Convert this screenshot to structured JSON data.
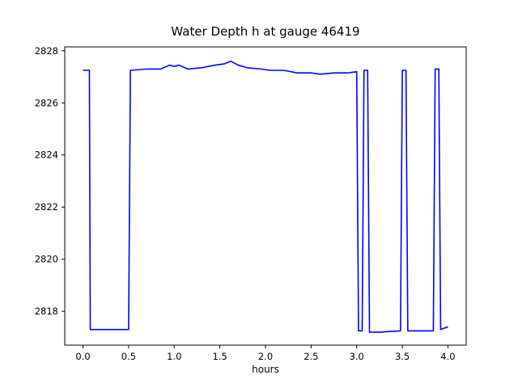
{
  "chart_data": {
    "type": "line",
    "title": "Water Depth h at gauge 46419",
    "xlabel": "hours",
    "ylabel": "",
    "xlim": [
      -0.2,
      4.2
    ],
    "ylim": [
      2816.7,
      2828.15
    ],
    "xticks": [
      0.0,
      0.5,
      1.0,
      1.5,
      2.0,
      2.5,
      3.0,
      3.5,
      4.0
    ],
    "xtick_labels": [
      "0.0",
      "0.5",
      "1.0",
      "1.5",
      "2.0",
      "2.5",
      "3.0",
      "3.5",
      "4.0"
    ],
    "yticks": [
      2818,
      2820,
      2822,
      2824,
      2826,
      2828
    ],
    "ytick_labels": [
      "2818",
      "2820",
      "2822",
      "2824",
      "2826",
      "2828"
    ],
    "grid": false,
    "legend": "none",
    "series": [
      {
        "name": "water-depth",
        "color": "#0000ff",
        "points": [
          [
            0.0,
            2827.25
          ],
          [
            0.07,
            2827.25
          ],
          [
            0.08,
            2817.3
          ],
          [
            0.5,
            2817.3
          ],
          [
            0.52,
            2827.25
          ],
          [
            0.7,
            2827.3
          ],
          [
            0.85,
            2827.3
          ],
          [
            0.95,
            2827.45
          ],
          [
            1.0,
            2827.4
          ],
          [
            1.05,
            2827.45
          ],
          [
            1.15,
            2827.3
          ],
          [
            1.3,
            2827.35
          ],
          [
            1.45,
            2827.45
          ],
          [
            1.55,
            2827.5
          ],
          [
            1.62,
            2827.6
          ],
          [
            1.7,
            2827.45
          ],
          [
            1.8,
            2827.35
          ],
          [
            1.95,
            2827.3
          ],
          [
            2.05,
            2827.25
          ],
          [
            2.2,
            2827.25
          ],
          [
            2.35,
            2827.15
          ],
          [
            2.5,
            2827.15
          ],
          [
            2.6,
            2827.1
          ],
          [
            2.75,
            2827.15
          ],
          [
            2.9,
            2827.15
          ],
          [
            3.0,
            2827.2
          ],
          [
            3.02,
            2817.25
          ],
          [
            3.06,
            2817.25
          ],
          [
            3.08,
            2827.25
          ],
          [
            3.12,
            2827.25
          ],
          [
            3.14,
            2817.2
          ],
          [
            3.25,
            2817.2
          ],
          [
            3.48,
            2817.25
          ],
          [
            3.5,
            2827.25
          ],
          [
            3.54,
            2827.25
          ],
          [
            3.56,
            2817.25
          ],
          [
            3.84,
            2817.25
          ],
          [
            3.86,
            2827.3
          ],
          [
            3.9,
            2827.3
          ],
          [
            3.92,
            2817.3
          ],
          [
            3.96,
            2817.35
          ],
          [
            4.0,
            2817.4
          ]
        ]
      }
    ]
  }
}
